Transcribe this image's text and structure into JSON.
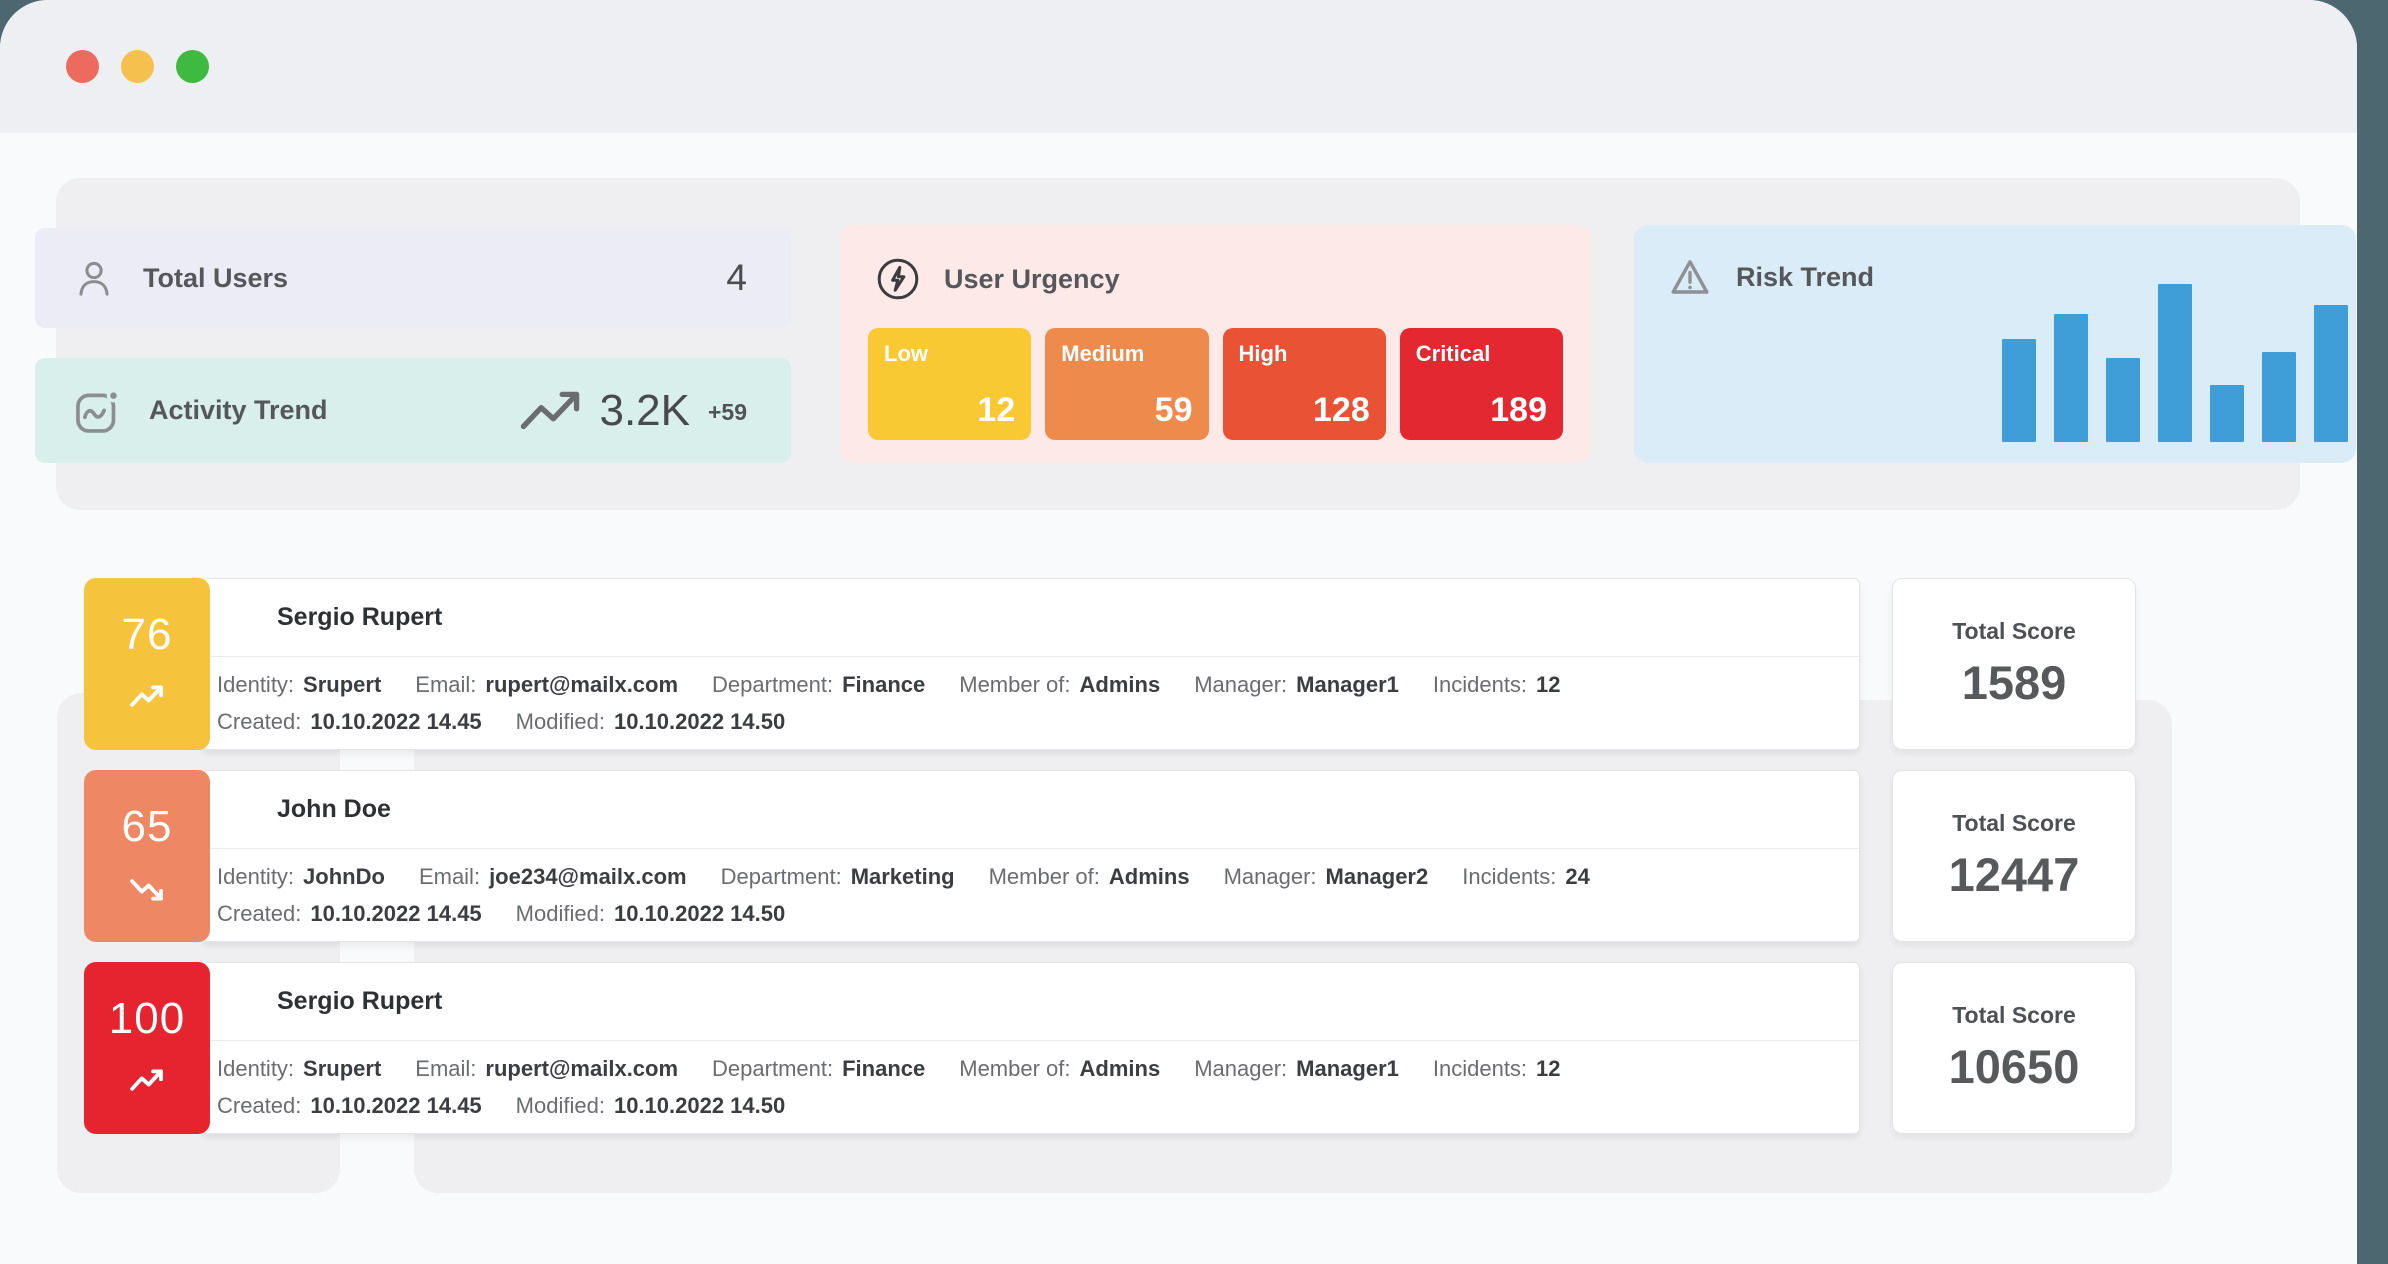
{
  "window": {
    "traffic_lights": {
      "close": "#ed6a5e",
      "minimize": "#f6c04f",
      "zoom": "#3eba41"
    }
  },
  "summary": {
    "total_users": {
      "label": "Total Users",
      "value": "4",
      "bg": "#ebecf6"
    },
    "activity_trend": {
      "label": "Activity Trend",
      "value": "3.2K",
      "delta": "+59",
      "bg": "#d8efec"
    },
    "user_urgency": {
      "label": "User Urgency",
      "bg": "#fce9e8",
      "tiles": [
        {
          "label": "Low",
          "value": "12",
          "color": "#f8c933"
        },
        {
          "label": "Medium",
          "value": "59",
          "color": "#ef8a4d"
        },
        {
          "label": "High",
          "value": "128",
          "color": "#ea5235"
        },
        {
          "label": "Critical",
          "value": "189",
          "color": "#e32832"
        }
      ]
    },
    "risk_trend": {
      "label": "Risk Trend",
      "bg": "#d9ecf8"
    }
  },
  "chart_data": {
    "type": "bar",
    "title": "Risk Trend",
    "values": [
      65,
      81,
      53,
      100,
      36,
      57,
      87
    ],
    "categories": [
      "",
      "",
      "",
      "",
      "",
      "",
      ""
    ],
    "ylim": [
      0,
      100
    ],
    "grid": false,
    "legend": false,
    "axes_hidden": true,
    "bar_color": "#3f9ed8"
  },
  "labels": {
    "total_score": "Total Score"
  },
  "users": [
    {
      "score": "76",
      "trend": "up",
      "badge_color": "#f6c43c",
      "name": "Sergio Rupert",
      "fields": [
        {
          "label": "Identity:",
          "value": "Srupert"
        },
        {
          "label": "Email:",
          "value": "rupert@mailx.com"
        },
        {
          "label": "Department:",
          "value": "Finance"
        },
        {
          "label": "Member of:",
          "value": "Admins"
        },
        {
          "label": "Manager:",
          "value": "Manager1"
        },
        {
          "label": "Incidents:",
          "value": "12"
        }
      ],
      "dates": [
        {
          "label": "Created:",
          "value": "10.10.2022 14.45"
        },
        {
          "label": "Modified:",
          "value": "10.10.2022 14.50"
        }
      ],
      "total_score": "1589"
    },
    {
      "score": "65",
      "trend": "down",
      "badge_color": "#ee8763",
      "name": "John Doe",
      "fields": [
        {
          "label": "Identity:",
          "value": "JohnDo"
        },
        {
          "label": "Email:",
          "value": "joe234@mailx.com"
        },
        {
          "label": "Department:",
          "value": "Marketing"
        },
        {
          "label": "Member of:",
          "value": "Admins"
        },
        {
          "label": "Manager:",
          "value": "Manager2"
        },
        {
          "label": "Incidents:",
          "value": "24"
        }
      ],
      "dates": [
        {
          "label": "Created:",
          "value": "10.10.2022 14.45"
        },
        {
          "label": "Modified:",
          "value": "10.10.2022 14.50"
        }
      ],
      "total_score": "12447"
    },
    {
      "score": "100",
      "trend": "up",
      "badge_color": "#e5242f",
      "name": "Sergio Rupert",
      "fields": [
        {
          "label": "Identity:",
          "value": "Srupert"
        },
        {
          "label": "Email:",
          "value": "rupert@mailx.com"
        },
        {
          "label": "Department:",
          "value": "Finance"
        },
        {
          "label": "Member of:",
          "value": "Admins"
        },
        {
          "label": "Manager:",
          "value": "Manager1"
        },
        {
          "label": "Incidents:",
          "value": "12"
        }
      ],
      "dates": [
        {
          "label": "Created:",
          "value": "10.10.2022 14.45"
        },
        {
          "label": "Modified:",
          "value": "10.10.2022 14.50"
        }
      ],
      "total_score": "10650"
    }
  ]
}
